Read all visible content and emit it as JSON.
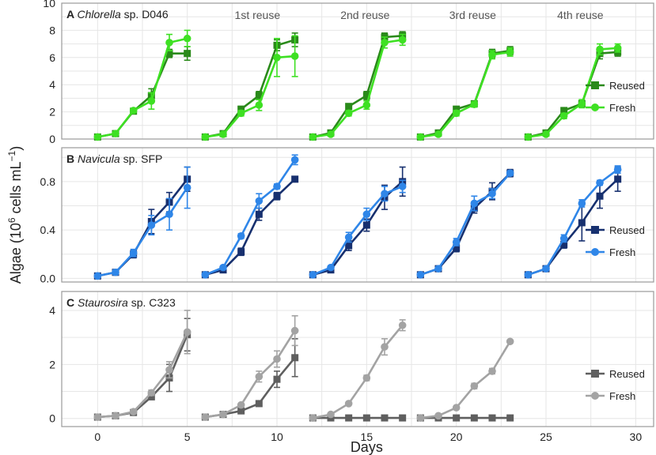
{
  "chart_data": {
    "type": "line",
    "xlabel": "Days",
    "ylabel_main": "Algae (10",
    "ylabel_exp": "6",
    "ylabel_mid": " cells mL",
    "ylabel_exp2": "−1",
    "ylabel_end": ")",
    "xlim": [
      -2,
      31
    ],
    "xticks": [
      0,
      5,
      10,
      15,
      20,
      25,
      30
    ],
    "cycle_labels": [
      "1st reuse",
      "2nd reuse",
      "3rd reuse",
      "4th reuse"
    ],
    "panels": [
      {
        "letter": "A",
        "species": "Chlorella",
        "suffix": " sp. D046",
        "ylim": [
          0,
          10
        ],
        "yticks": [
          0,
          2,
          4,
          6,
          8,
          10
        ],
        "show_cycle_labels": true,
        "series": [
          {
            "name": "Reused",
            "color": "#2a8a1a",
            "marker": "square",
            "segments": [
              {
                "x": [
                  0,
                  1,
                  2,
                  3,
                  4,
                  5
                ],
                "y": [
                  0.15,
                  0.4,
                  2.05,
                  3.2,
                  6.3,
                  6.3
                ],
                "err": [
                  0.1,
                  0.1,
                  0.15,
                  0.5,
                  0.3,
                  0.5
                ]
              },
              {
                "x": [
                  6,
                  7,
                  8,
                  9,
                  10,
                  11
                ],
                "y": [
                  0.15,
                  0.4,
                  2.2,
                  3.2,
                  6.9,
                  7.3
                ],
                "err": [
                  0.1,
                  0.1,
                  0.2,
                  0.3,
                  0.4,
                  0.5
                ]
              },
              {
                "x": [
                  12,
                  13,
                  14,
                  15,
                  16,
                  17
                ],
                "y": [
                  0.15,
                  0.45,
                  2.4,
                  3.2,
                  7.5,
                  7.6
                ],
                "err": [
                  0.1,
                  0.1,
                  0.1,
                  0.3,
                  0.3,
                  0.3
                ]
              },
              {
                "x": [
                  18,
                  19,
                  20,
                  21,
                  22,
                  23
                ],
                "y": [
                  0.15,
                  0.45,
                  2.2,
                  2.6,
                  6.3,
                  6.5
                ],
                "err": [
                  0.1,
                  0.1,
                  0.2,
                  0.2,
                  0.3,
                  0.3
                ]
              },
              {
                "x": [
                  24,
                  25,
                  26,
                  27,
                  28,
                  29
                ],
                "y": [
                  0.15,
                  0.45,
                  2.1,
                  2.6,
                  6.3,
                  6.4
                ],
                "err": [
                  0.1,
                  0.1,
                  0.2,
                  0.2,
                  0.4,
                  0.3
                ]
              }
            ]
          },
          {
            "name": "Fresh",
            "color": "#3ee023",
            "marker": "circle",
            "segments": [
              {
                "x": [
                  0,
                  1,
                  2,
                  3,
                  4,
                  5
                ],
                "y": [
                  0.15,
                  0.4,
                  2.1,
                  2.8,
                  7.1,
                  7.4
                ],
                "err": [
                  0.1,
                  0.1,
                  0.15,
                  0.6,
                  0.6,
                  0.6
                ]
              },
              {
                "x": [
                  6,
                  7,
                  8,
                  9,
                  10,
                  11
                ],
                "y": [
                  0.15,
                  0.35,
                  1.9,
                  2.5,
                  6.0,
                  6.1
                ],
                "err": [
                  0.1,
                  0.1,
                  0.2,
                  0.4,
                  1.4,
                  1.5
                ]
              },
              {
                "x": [
                  12,
                  13,
                  14,
                  15,
                  16,
                  17
                ],
                "y": [
                  0.15,
                  0.35,
                  1.9,
                  2.5,
                  7.1,
                  7.3
                ],
                "err": [
                  0.1,
                  0.1,
                  0.2,
                  0.3,
                  0.4,
                  0.4
                ]
              },
              {
                "x": [
                  18,
                  19,
                  20,
                  21,
                  22,
                  23
                ],
                "y": [
                  0.15,
                  0.35,
                  1.9,
                  2.55,
                  6.2,
                  6.4
                ],
                "err": [
                  0.1,
                  0.1,
                  0.2,
                  0.2,
                  0.3,
                  0.3
                ]
              },
              {
                "x": [
                  24,
                  25,
                  26,
                  27,
                  28,
                  29
                ],
                "y": [
                  0.15,
                  0.35,
                  1.7,
                  2.6,
                  6.6,
                  6.7
                ],
                "err": [
                  0.1,
                  0.1,
                  0.2,
                  0.3,
                  0.4,
                  0.3
                ]
              }
            ]
          }
        ]
      },
      {
        "letter": "B",
        "species": "Navicula",
        "suffix": " sp. SFP",
        "ylim": [
          -0.03,
          1.08
        ],
        "yticks": [
          0.0,
          0.4,
          0.8
        ],
        "ytick_labels": [
          "0.0",
          "0.4",
          "0.8"
        ],
        "show_cycle_labels": false,
        "series": [
          {
            "name": "Reused",
            "color": "#17306f",
            "marker": "square",
            "segments": [
              {
                "x": [
                  0,
                  1,
                  2,
                  3,
                  4,
                  5
                ],
                "y": [
                  0.02,
                  0.05,
                  0.2,
                  0.47,
                  0.63,
                  0.82
                ],
                "err": [
                  0.01,
                  0.02,
                  0.03,
                  0.1,
                  0.08,
                  0.1
                ]
              },
              {
                "x": [
                  6,
                  7,
                  8,
                  9,
                  10,
                  11
                ],
                "y": [
                  0.03,
                  0.07,
                  0.22,
                  0.53,
                  0.68,
                  0.82
                ],
                "err": [
                  0.01,
                  0.01,
                  0.03,
                  0.05,
                  0.03,
                  0.02
                ]
              },
              {
                "x": [
                  12,
                  13,
                  14,
                  15,
                  16,
                  17
                ],
                "y": [
                  0.03,
                  0.07,
                  0.27,
                  0.44,
                  0.67,
                  0.8
                ],
                "err": [
                  0.01,
                  0.01,
                  0.04,
                  0.05,
                  0.1,
                  0.12
                ]
              },
              {
                "x": [
                  18,
                  19,
                  20,
                  21,
                  22,
                  23
                ],
                "y": [
                  0.03,
                  0.08,
                  0.25,
                  0.58,
                  0.72,
                  0.87
                ],
                "err": [
                  0.01,
                  0.01,
                  0.03,
                  0.04,
                  0.07,
                  0.03
                ]
              },
              {
                "x": [
                  24,
                  25,
                  26,
                  27,
                  28,
                  29
                ],
                "y": [
                  0.03,
                  0.08,
                  0.28,
                  0.46,
                  0.68,
                  0.82
                ],
                "err": [
                  0.01,
                  0.01,
                  0.03,
                  0.15,
                  0.1,
                  0.1
                ]
              }
            ]
          },
          {
            "name": "Fresh",
            "color": "#2f86e8",
            "marker": "circle",
            "segments": [
              {
                "x": [
                  0,
                  1,
                  2,
                  3,
                  4,
                  5
                ],
                "y": [
                  0.02,
                  0.05,
                  0.21,
                  0.44,
                  0.53,
                  0.75
                ],
                "err": [
                  0.01,
                  0.02,
                  0.03,
                  0.08,
                  0.13,
                  0.17
                ]
              },
              {
                "x": [
                  6,
                  7,
                  8,
                  9,
                  10,
                  11
                ],
                "y": [
                  0.03,
                  0.09,
                  0.35,
                  0.64,
                  0.76,
                  0.98
                ],
                "err": [
                  0.01,
                  0.01,
                  0.02,
                  0.06,
                  0.02,
                  0.04
                ]
              },
              {
                "x": [
                  12,
                  13,
                  14,
                  15,
                  16,
                  17
                ],
                "y": [
                  0.03,
                  0.09,
                  0.34,
                  0.53,
                  0.7,
                  0.76
                ],
                "err": [
                  0.01,
                  0.01,
                  0.04,
                  0.05,
                  0.06,
                  0.05
                ]
              },
              {
                "x": [
                  18,
                  19,
                  20,
                  21,
                  22,
                  23
                ],
                "y": [
                  0.03,
                  0.08,
                  0.3,
                  0.62,
                  0.7,
                  0.87
                ],
                "err": [
                  0.01,
                  0.01,
                  0.03,
                  0.06,
                  0.04,
                  0.02
                ]
              },
              {
                "x": [
                  24,
                  25,
                  26,
                  27,
                  28,
                  29
                ],
                "y": [
                  0.03,
                  0.08,
                  0.33,
                  0.62,
                  0.79,
                  0.9
                ],
                "err": [
                  0.01,
                  0.01,
                  0.03,
                  0.03,
                  0.02,
                  0.03
                ]
              }
            ]
          }
        ]
      },
      {
        "letter": "C",
        "species": "Staurosira",
        "suffix": " sp. C323",
        "ylim": [
          -0.3,
          4.7
        ],
        "yticks": [
          0,
          2,
          4
        ],
        "show_cycle_labels": false,
        "series": [
          {
            "name": "Reused",
            "color": "#5f5f5f",
            "marker": "square",
            "segments": [
              {
                "x": [
                  0,
                  1,
                  2,
                  3,
                  4,
                  5
                ],
                "y": [
                  0.05,
                  0.1,
                  0.22,
                  0.8,
                  1.5,
                  3.1
                ],
                "err": [
                  0.03,
                  0.05,
                  0.05,
                  0.1,
                  0.5,
                  0.6
                ]
              },
              {
                "x": [
                  6,
                  7,
                  8,
                  9,
                  10,
                  11
                ],
                "y": [
                  0.05,
                  0.15,
                  0.28,
                  0.55,
                  1.45,
                  2.25
                ],
                "err": [
                  0.03,
                  0.05,
                  0.05,
                  0.1,
                  0.3,
                  0.7
                ]
              },
              {
                "x": [
                  12,
                  13,
                  14,
                  15,
                  16,
                  17
                ],
                "y": [
                  0.02,
                  0.02,
                  0.02,
                  0.02,
                  0.02,
                  0.02
                ],
                "err": [
                  0.02,
                  0.02,
                  0.02,
                  0.02,
                  0.02,
                  0.02
                ]
              },
              {
                "x": [
                  18,
                  19,
                  20,
                  21,
                  22,
                  23
                ],
                "y": [
                  0.02,
                  0.02,
                  0.02,
                  0.02,
                  0.02,
                  0.02
                ],
                "err": [
                  0.02,
                  0.02,
                  0.02,
                  0.02,
                  0.02,
                  0.02
                ]
              }
            ]
          },
          {
            "name": "Fresh",
            "color": "#a3a3a3",
            "marker": "circle",
            "segments": [
              {
                "x": [
                  0,
                  1,
                  2,
                  3,
                  4,
                  5
                ],
                "y": [
                  0.05,
                  0.1,
                  0.25,
                  0.95,
                  1.8,
                  3.2
                ],
                "err": [
                  0.03,
                  0.05,
                  0.05,
                  0.1,
                  0.3,
                  0.8
                ]
              },
              {
                "x": [
                  6,
                  7,
                  8,
                  9,
                  10,
                  11
                ],
                "y": [
                  0.05,
                  0.15,
                  0.5,
                  1.55,
                  2.2,
                  3.25
                ],
                "err": [
                  0.03,
                  0.05,
                  0.05,
                  0.2,
                  0.3,
                  0.55
                ]
              },
              {
                "x": [
                  12,
                  13,
                  14,
                  15,
                  16,
                  17
                ],
                "y": [
                  0.02,
                  0.15,
                  0.55,
                  1.5,
                  2.65,
                  3.45
                ],
                "err": [
                  0.02,
                  0.03,
                  0.05,
                  0.1,
                  0.3,
                  0.2
                ]
              },
              {
                "x": [
                  18,
                  19,
                  20,
                  21,
                  22,
                  23
                ],
                "y": [
                  0.02,
                  0.1,
                  0.4,
                  1.2,
                  1.75,
                  2.85
                ],
                "err": [
                  0.02,
                  0.03,
                  0.05,
                  0.1,
                  0.1,
                  0.05
                ]
              }
            ]
          }
        ]
      }
    ]
  }
}
